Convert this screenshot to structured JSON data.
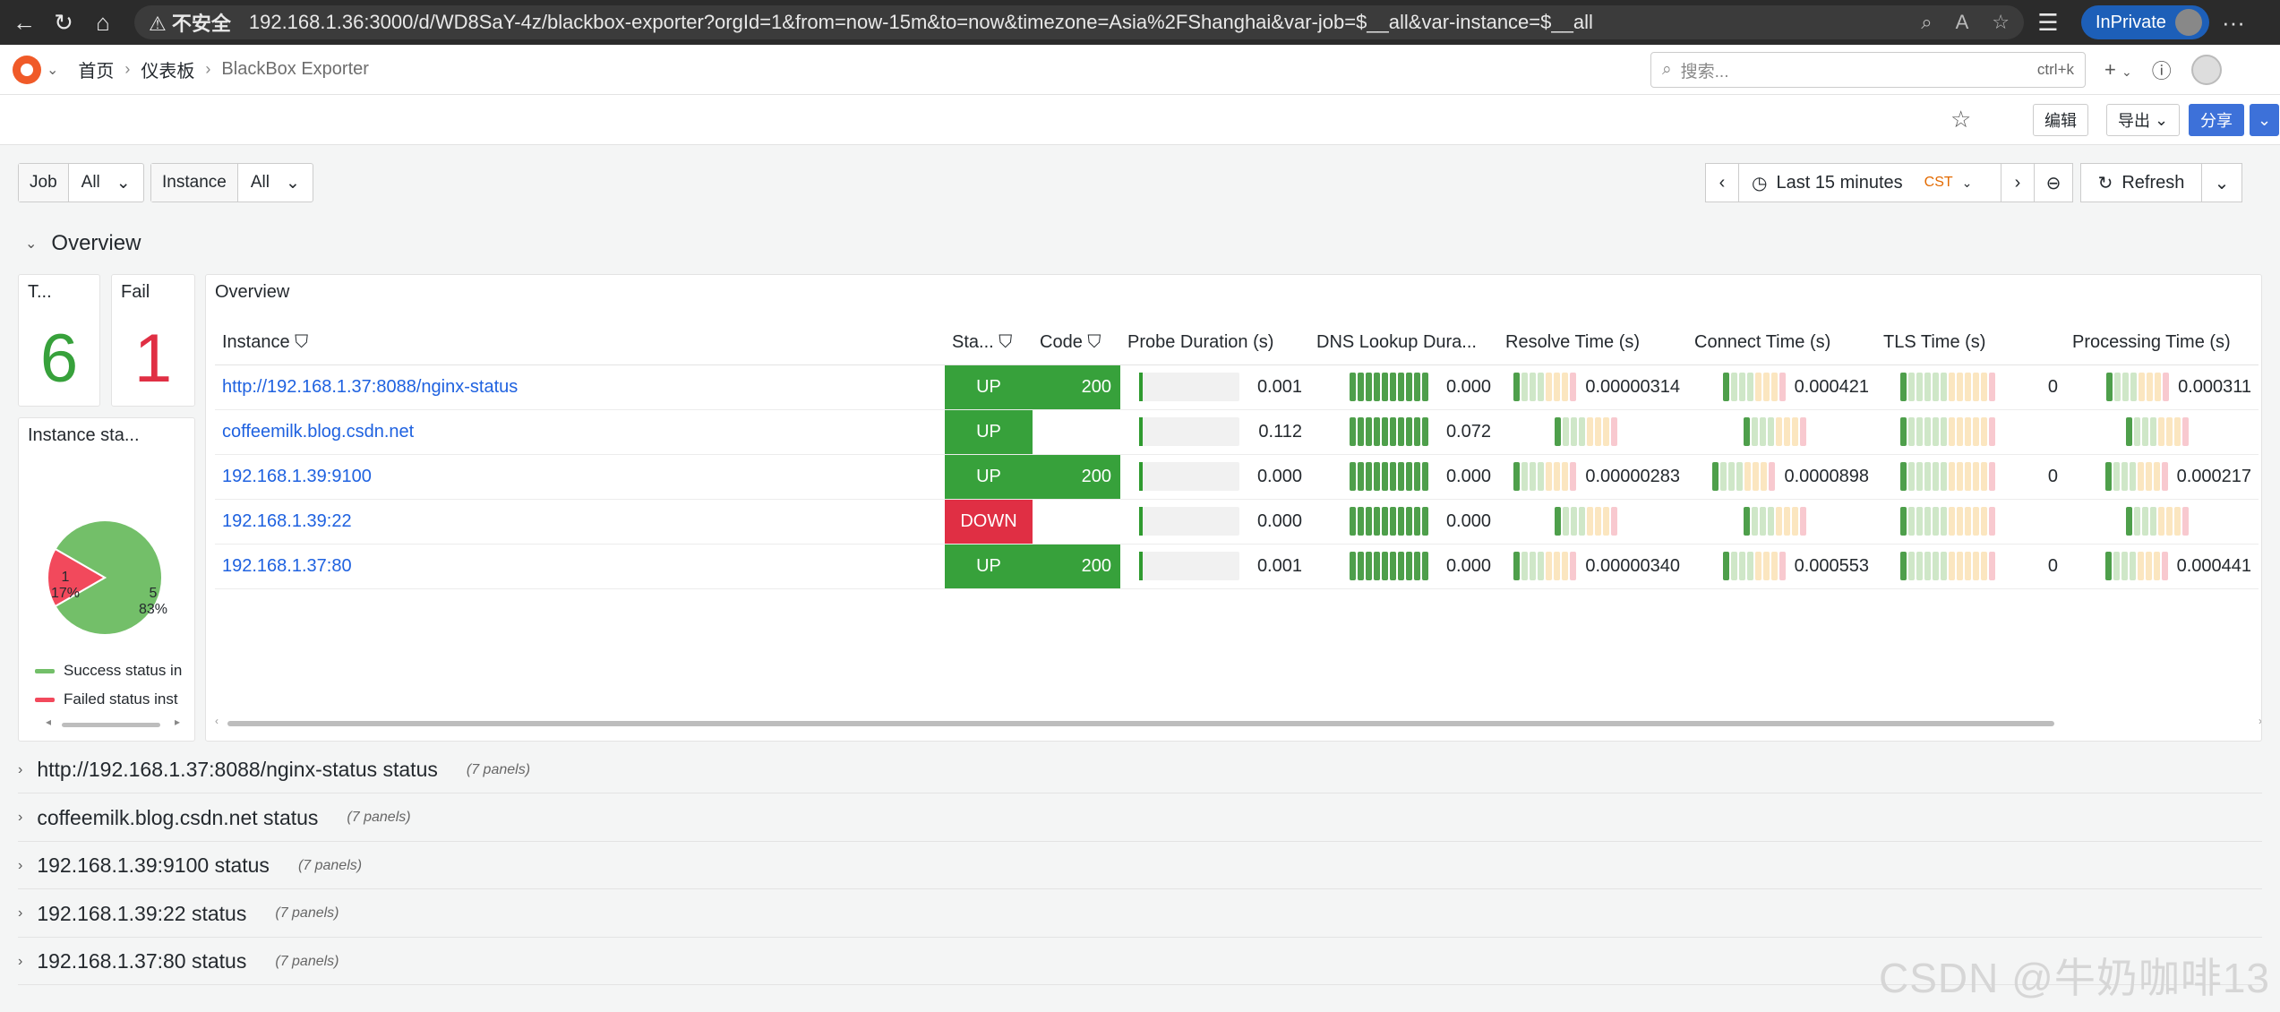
{
  "browser": {
    "insecure_label": "不安全",
    "url": "192.168.1.36:3000/d/WD8SaY-4z/blackbox-exporter?orgId=1&from=now-15m&to=now&timezone=Asia%2FShanghai&var-job=$__all&var-instance=$__all",
    "inprivate_label": "InPrivate"
  },
  "nav": {
    "breadcrumb": [
      "首页",
      "仪表板",
      "BlackBox Exporter"
    ],
    "search_placeholder": "搜索...",
    "search_shortcut": "ctrl+k",
    "add_label": "+"
  },
  "toolbar": {
    "edit_label": "编辑",
    "export_label": "导出",
    "share_label": "分享"
  },
  "variables": [
    {
      "label": "Job",
      "value": "All"
    },
    {
      "label": "Instance",
      "value": "All"
    }
  ],
  "time": {
    "range_label": "Last 15 minutes",
    "tz": "CST",
    "refresh_label": "Refresh"
  },
  "overview_title": "Overview",
  "stats": {
    "total": {
      "title": "T...",
      "value": "6",
      "color": "#37a13b"
    },
    "fail": {
      "title": "Fail",
      "value": "1",
      "color": "#e02f44"
    }
  },
  "pie": {
    "title": "Instance sta...",
    "slices": [
      {
        "label": "Success status in",
        "count": "5",
        "percent": "83%",
        "value": 5,
        "color": "#73bf69"
      },
      {
        "label": "Failed status inst",
        "count": "1",
        "percent": "17%",
        "value": 1,
        "color": "#f2495c"
      }
    ]
  },
  "table": {
    "title": "Overview",
    "columns": [
      "Instance",
      "Sta...",
      "Code",
      "Probe Duration (s)",
      "DNS Lookup Dura...",
      "Resolve Time (s)",
      "Connect Time (s)",
      "TLS Time (s)",
      "Processing Time (s)"
    ],
    "rows": [
      {
        "instance": "http://192.168.1.37:8088/nginx-status",
        "status": "UP",
        "code": "200",
        "probe": "0.001",
        "dns": "0.000",
        "resolve": "0.00000314",
        "connect": "0.000421",
        "tls": "0",
        "processing": "0.000311"
      },
      {
        "instance": "coffeemilk.blog.csdn.net",
        "status": "UP",
        "code": "",
        "probe": "0.112",
        "dns": "0.072",
        "resolve": "",
        "connect": "",
        "tls": "",
        "processing": ""
      },
      {
        "instance": "192.168.1.39:9100",
        "status": "UP",
        "code": "200",
        "probe": "0.000",
        "dns": "0.000",
        "resolve": "0.00000283",
        "connect": "0.0000898",
        "tls": "0",
        "processing": "0.000217"
      },
      {
        "instance": "192.168.1.39:22",
        "status": "DOWN",
        "code": "",
        "probe": "0.000",
        "dns": "0.000",
        "resolve": "",
        "connect": "",
        "tls": "",
        "processing": ""
      },
      {
        "instance": "192.168.1.37:80",
        "status": "UP",
        "code": "200",
        "probe": "0.001",
        "dns": "0.000",
        "resolve": "0.00000340",
        "connect": "0.000553",
        "tls": "0",
        "processing": "0.000441"
      }
    ],
    "colors": {
      "up": "#37a13b",
      "down": "#e02f44"
    }
  },
  "rows": [
    {
      "title": "http://192.168.1.37:8088/nginx-status status",
      "panels": "(7 panels)"
    },
    {
      "title": "coffeemilk.blog.csdn.net status",
      "panels": "(7 panels)"
    },
    {
      "title": "192.168.1.39:9100 status",
      "panels": "(7 panels)"
    },
    {
      "title": "192.168.1.39:22 status",
      "panels": "(7 panels)"
    },
    {
      "title": "192.168.1.37:80 status",
      "panels": "(7 panels)"
    }
  ],
  "watermark": "CSDN @牛奶咖啡13"
}
